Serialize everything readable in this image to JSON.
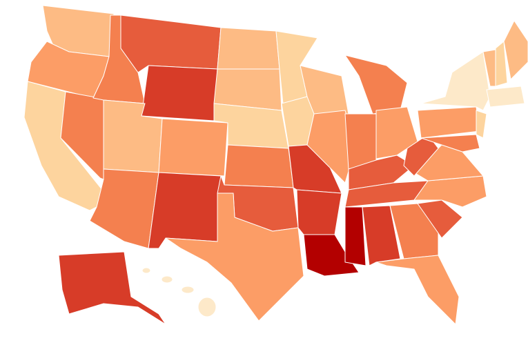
{
  "chart_data": {
    "type": "choropleth",
    "palette": [
      "#fde9c9",
      "#fdd49e",
      "#fdbb84",
      "#fc9d66",
      "#f4804f",
      "#e65c3c",
      "#d73c28",
      "#b30000"
    ]
  }
}
